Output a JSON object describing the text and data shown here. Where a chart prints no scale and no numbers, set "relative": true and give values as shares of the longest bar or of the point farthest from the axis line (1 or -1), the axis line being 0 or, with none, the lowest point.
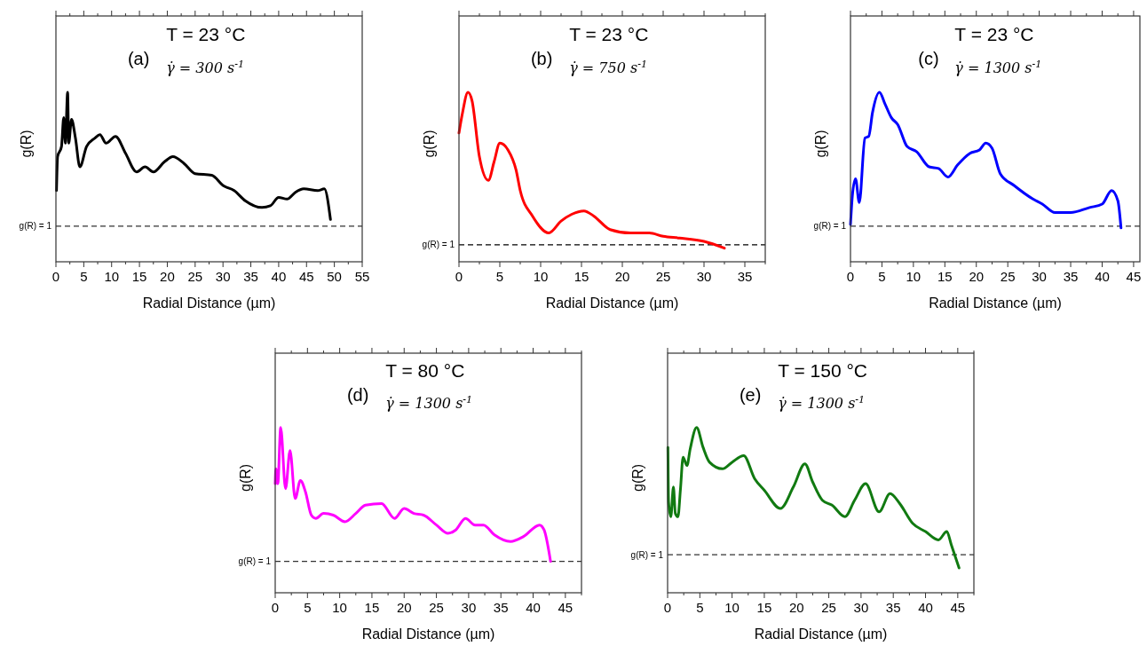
{
  "chart_data": [
    {
      "type": "line",
      "relative": true,
      "xlabel": "Radial Distance (µm)",
      "ylabel": "g(R)",
      "xlim": [
        0,
        55
      ],
      "xticks": [
        0,
        5,
        10,
        15,
        20,
        25,
        30,
        35,
        40,
        45,
        50,
        55
      ],
      "grid": false,
      "marker": "none",
      "line_style": "solid",
      "annotations": [
        "(a)",
        "T = 23 °C",
        "γ̇ = 300 s$^{-1}$",
        "g(R) = 1"
      ],
      "ref_lines": [
        {
          "axis": "y",
          "value": 0.21,
          "line_style": "dashed",
          "color": "#333333"
        }
      ],
      "series": [
        {
          "color": "#000000",
          "x": [
            0.1,
            0.3,
            1,
            1.4,
            1.7,
            2.1,
            2.3,
            2.8,
            3.5,
            4.3,
            5.5,
            7,
            7.9,
            9,
            10.7,
            12.5,
            14.5,
            16,
            17.5,
            19.5,
            21,
            23,
            25,
            28,
            30,
            32,
            34,
            37,
            38.5,
            40,
            41.5,
            43,
            44.5,
            47,
            48.2,
            49.3
          ],
          "values": [
            0.42,
            0.62,
            0.68,
            0.85,
            0.7,
            1.0,
            0.7,
            0.84,
            0.73,
            0.56,
            0.68,
            0.73,
            0.75,
            0.7,
            0.74,
            0.64,
            0.53,
            0.56,
            0.53,
            0.59,
            0.62,
            0.58,
            0.52,
            0.51,
            0.45,
            0.42,
            0.36,
            0.32,
            0.33,
            0.38,
            0.37,
            0.41,
            0.43,
            0.42,
            0.43,
            0.25
          ]
        }
      ]
    },
    {
      "type": "line",
      "relative": true,
      "xlabel": "Radial Distance (µm)",
      "ylabel": "g(R)",
      "xlim": [
        0,
        37.5
      ],
      "xticks": [
        0,
        5,
        10,
        15,
        20,
        25,
        30,
        35
      ],
      "grid": false,
      "marker": "none",
      "line_style": "solid",
      "annotations": [
        "(b)",
        "T = 23 °C",
        "γ̇ = 750 s$^{-1}$",
        "g(R) = 1"
      ],
      "ref_lines": [
        {
          "axis": "y",
          "value": 0.1,
          "line_style": "dashed",
          "color": "#000000"
        }
      ],
      "series": [
        {
          "color": "#ff0000",
          "x": [
            0,
            0.4,
            1.1,
            1.6,
            2.5,
            3.6,
            4.3,
            5,
            6,
            7,
            7.5,
            9,
            11,
            12.5,
            13.8,
            15.3,
            16.5,
            18.5,
            21,
            23.3,
            25,
            27,
            30,
            32.5
          ],
          "values": [
            0.76,
            0.87,
            1.0,
            0.95,
            0.62,
            0.48,
            0.59,
            0.7,
            0.66,
            0.54,
            0.42,
            0.27,
            0.17,
            0.24,
            0.28,
            0.3,
            0.27,
            0.19,
            0.17,
            0.17,
            0.15,
            0.14,
            0.12,
            0.08
          ]
        }
      ]
    },
    {
      "type": "line",
      "relative": true,
      "xlabel": "Radial Distance (µm)",
      "ylabel": "g(R)",
      "xlim": [
        0,
        46
      ],
      "xticks": [
        0,
        5,
        10,
        15,
        20,
        25,
        30,
        35,
        40,
        45
      ],
      "grid": false,
      "marker": "none",
      "line_style": "solid",
      "annotations": [
        "(c)",
        "T = 23 °C",
        "γ̇ = 1300 s$^{-1}$",
        "g(R) = 1"
      ],
      "ref_lines": [
        {
          "axis": "y",
          "value": 0.21,
          "line_style": "dashed",
          "color": "#333333"
        }
      ],
      "series": [
        {
          "color": "#0000ff",
          "x": [
            0,
            0.3,
            0.8,
            1.4,
            2.3,
            2.9,
            3.5,
            4.6,
            5.5,
            6.5,
            7.5,
            9,
            10.5,
            12.5,
            14,
            15.5,
            17,
            19,
            20.5,
            21.5,
            22.5,
            23.8,
            26,
            29,
            30.5,
            32.5,
            35,
            38,
            40,
            41.5,
            42.5,
            43
          ],
          "values": [
            0.22,
            0.39,
            0.49,
            0.35,
            0.73,
            0.74,
            0.88,
            1.0,
            0.93,
            0.85,
            0.81,
            0.68,
            0.65,
            0.56,
            0.55,
            0.5,
            0.57,
            0.64,
            0.66,
            0.7,
            0.67,
            0.52,
            0.45,
            0.37,
            0.34,
            0.29,
            0.29,
            0.32,
            0.34,
            0.42,
            0.36,
            0.2
          ]
        }
      ]
    },
    {
      "type": "line",
      "relative": true,
      "xlabel": "Radial Distance (µm)",
      "ylabel": "g(R)",
      "xlim": [
        0,
        47.5
      ],
      "xticks": [
        0,
        5,
        10,
        15,
        20,
        25,
        30,
        35,
        40,
        45
      ],
      "grid": false,
      "marker": "none",
      "line_style": "solid",
      "annotations": [
        "(d)",
        "T = 80 °C",
        "γ̇ = 1300 s$^{-1}$",
        "g(R) = 1"
      ],
      "ref_lines": [
        {
          "axis": "y",
          "value": 0.19,
          "line_style": "dashed",
          "color": "#333333"
        }
      ],
      "series": [
        {
          "color": "#ff00ff",
          "x": [
            0,
            0.1,
            0.4,
            0.85,
            1.6,
            2.3,
            3.1,
            3.9,
            4.7,
            5.6,
            6.3,
            7.5,
            9,
            10.8,
            12.5,
            14,
            16.5,
            18.5,
            20,
            21.5,
            23,
            25,
            26.8,
            28,
            29.5,
            31,
            32.3,
            34,
            36.5,
            38.5,
            41,
            41.7,
            42.7
          ],
          "values": [
            0.66,
            0.75,
            0.66,
            1.0,
            0.63,
            0.86,
            0.57,
            0.68,
            0.61,
            0.47,
            0.45,
            0.48,
            0.47,
            0.43,
            0.48,
            0.53,
            0.54,
            0.45,
            0.51,
            0.48,
            0.47,
            0.41,
            0.36,
            0.38,
            0.45,
            0.41,
            0.41,
            0.35,
            0.31,
            0.34,
            0.41,
            0.38,
            0.19
          ]
        }
      ]
    },
    {
      "type": "line",
      "relative": true,
      "xlabel": "Radial Distance (µm)",
      "ylabel": "g(R)",
      "xlim": [
        0,
        47.5
      ],
      "xticks": [
        0,
        5,
        10,
        15,
        20,
        25,
        30,
        35,
        40,
        45
      ],
      "grid": false,
      "marker": "none",
      "line_style": "solid",
      "annotations": [
        "(e)",
        "T = 150 °C",
        "γ̇ = 1300 s$^{-1}$",
        "g(R) = 1"
      ],
      "ref_lines": [
        {
          "axis": "y",
          "value": 0.23,
          "line_style": "dashed",
          "color": "#333333"
        }
      ],
      "series": [
        {
          "color": "#117a11",
          "x": [
            0.05,
            0.15,
            0.5,
            0.9,
            1.2,
            1.6,
            2,
            2.4,
            3,
            3.5,
            4.5,
            5.5,
            6.5,
            8.5,
            10,
            11.8,
            13.5,
            15,
            17.5,
            19.5,
            21.3,
            22.5,
            24,
            25.5,
            27.5,
            29,
            30.7,
            32.8,
            34.5,
            36,
            38,
            40,
            42,
            43.3,
            44,
            45.2
          ],
          "values": [
            0.88,
            0.55,
            0.46,
            0.64,
            0.48,
            0.46,
            0.63,
            0.82,
            0.77,
            0.87,
            1.0,
            0.88,
            0.79,
            0.75,
            0.79,
            0.83,
            0.69,
            0.62,
            0.51,
            0.64,
            0.78,
            0.67,
            0.56,
            0.53,
            0.46,
            0.56,
            0.66,
            0.49,
            0.6,
            0.54,
            0.42,
            0.37,
            0.32,
            0.37,
            0.29,
            0.15
          ]
        }
      ]
    }
  ]
}
